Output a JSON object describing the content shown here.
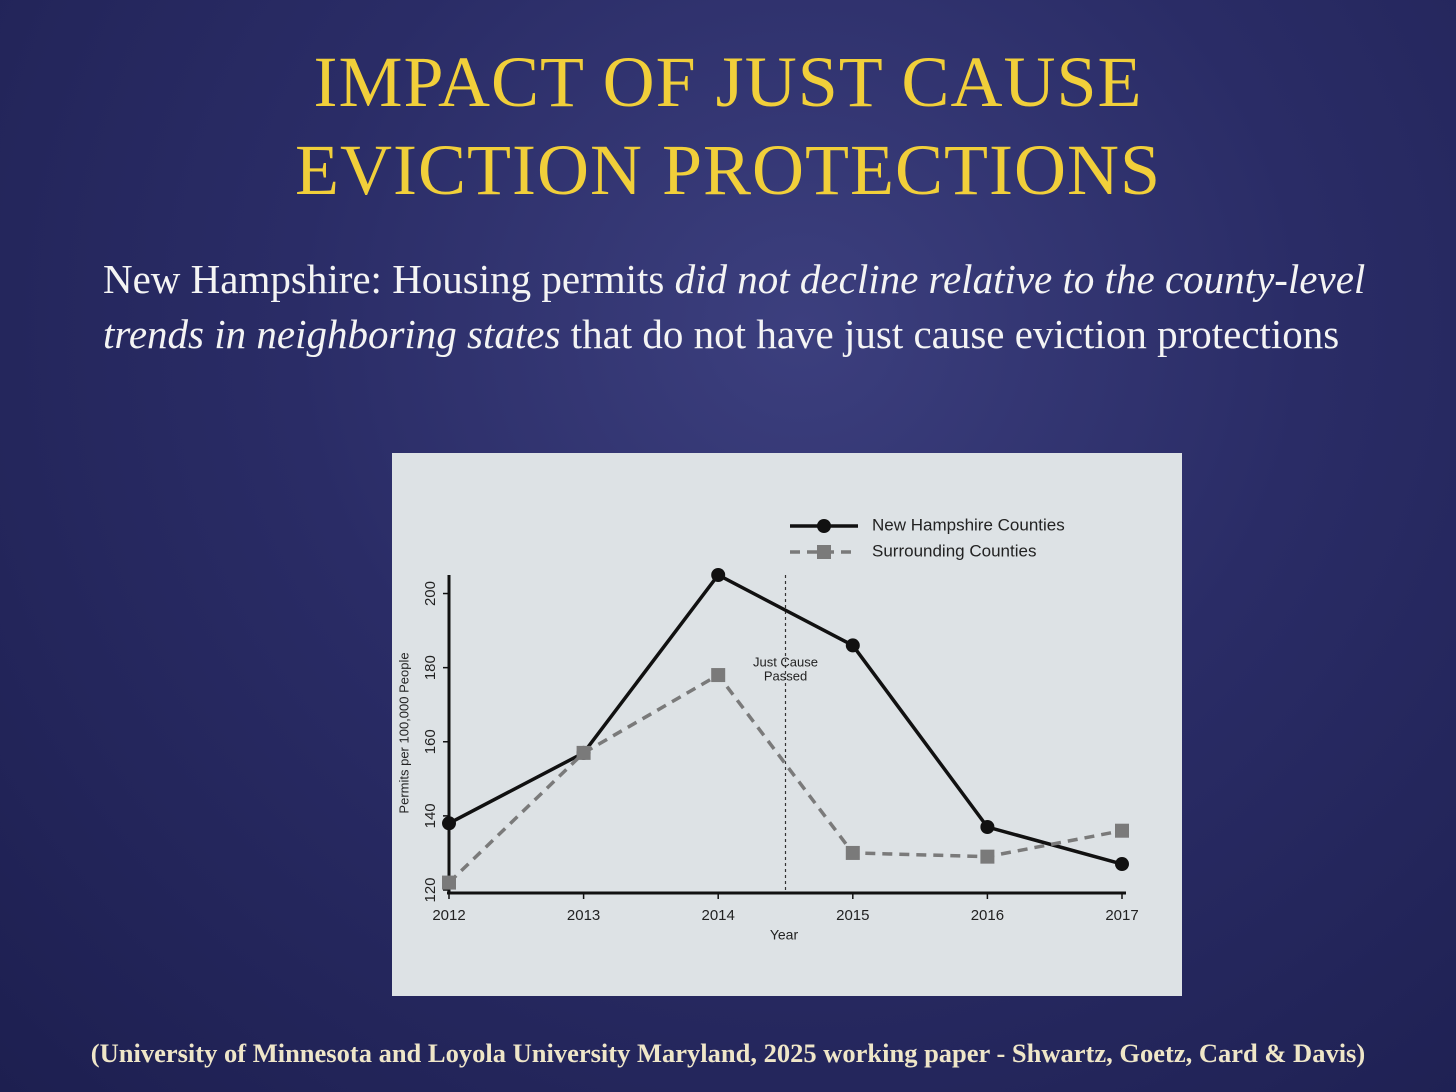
{
  "slide": {
    "title": [
      "IMPACT OF JUST CAUSE",
      "EVICTION PROTECTIONS"
    ],
    "body": [
      "New Hampshire: Housing permits ",
      "did not decline relative to the county-level trends in neighboring states",
      " that do not have just cause eviction protections"
    ],
    "footer": "(University of Minnesota and Loyola University Maryland, 2025 working paper - Shwartz, Goetz, Card & Davis)"
  },
  "chart_data": {
    "type": "line",
    "x_label": "Year",
    "y_label": "Permits per 100,000 People",
    "x": [
      2012,
      2013,
      2014,
      2015,
      2016,
      2017
    ],
    "xlim": [
      2012,
      2017
    ],
    "xticks": [
      2012,
      2013,
      2014,
      2015,
      2016,
      2017
    ],
    "ylim": [
      120,
      205
    ],
    "yticks": [
      120,
      140,
      160,
      180,
      200
    ],
    "legend": "top-right",
    "event": {
      "x": 2014.5,
      "label": [
        "Just Cause",
        "Passed"
      ]
    },
    "series": [
      {
        "name": "New Hampshire Counties",
        "color": "#111111",
        "marker": "circle",
        "dash": false,
        "values": [
          138,
          157,
          205,
          186,
          137,
          127
        ]
      },
      {
        "name": "Surrounding Counties",
        "color": "#7a7a7a",
        "marker": "square",
        "dash": true,
        "values": [
          122,
          157,
          178,
          130,
          129,
          136
        ]
      }
    ]
  }
}
